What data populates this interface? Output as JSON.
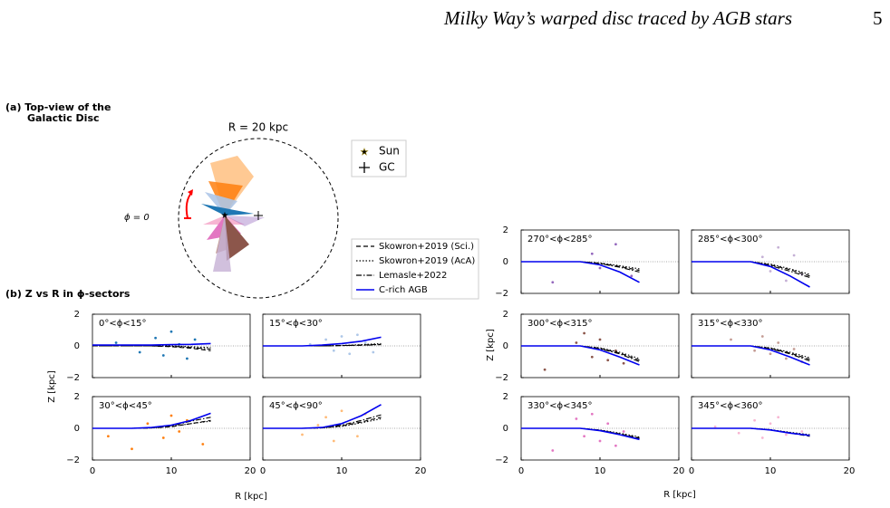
{
  "header": {
    "title": "Milky Way’s warped disc traced by AGB stars",
    "page": "5"
  },
  "panel_a": {
    "title_line1": "(a) Top-view of the",
    "title_line2": "Galactic Disc",
    "circle_label": "R = 20 kpc",
    "phi_label": "ϕ = 0",
    "legend": [
      "Sun",
      "GC"
    ]
  },
  "panel_b_title": "(b) Z vs R in ϕ-sectors",
  "legend": [
    {
      "name": "Skowron+2019 (Sci.)",
      "style": "dashed",
      "color": "#000000"
    },
    {
      "name": "Skowron+2019 (AcA)",
      "style": "dotted",
      "color": "#000000"
    },
    {
      "name": "Lemasle+2022",
      "style": "dashdot",
      "color": "#000000"
    },
    {
      "name": "C-rich AGB",
      "style": "solid",
      "color": "#0000ee"
    }
  ],
  "xlabel": "R [kpc]",
  "ylabel": "Z [kpc]",
  "xlim": [
    0,
    20
  ],
  "ylim": [
    -2,
    2
  ],
  "xticks": [
    0,
    10,
    20
  ],
  "yticks": [
    {
      "value": -2,
      "label": "−2"
    },
    0,
    2
  ],
  "model_x": [
    0,
    5,
    7.5,
    10,
    12.5,
    15
  ],
  "sectors": [
    {
      "label": "0°<ϕ<15°",
      "color": "#1f77b4",
      "agb": [
        0.05,
        0.05,
        0.05,
        0.08,
        0.1,
        0.15
      ],
      "sci": [
        0,
        0,
        0,
        -0.05,
        -0.15,
        -0.3
      ],
      "aca": [
        0,
        0,
        0,
        0,
        -0.05,
        -0.1
      ],
      "lem": [
        0,
        0,
        0,
        -0.02,
        -0.1,
        -0.2
      ],
      "pts_x": [
        3,
        6,
        8,
        9,
        10,
        11,
        12,
        13
      ],
      "pts_y": [
        0.2,
        -0.4,
        0.5,
        -0.6,
        0.9,
        0.1,
        -0.8,
        0.4
      ]
    },
    {
      "label": "15°<ϕ<30°",
      "color": "#aec7e8",
      "agb": [
        0,
        0,
        0.05,
        0.15,
        0.3,
        0.55
      ],
      "sci": [
        0,
        0,
        0,
        0.02,
        0.05,
        0.1
      ],
      "aca": [
        0,
        0,
        0,
        0.03,
        0.08,
        0.15
      ],
      "lem": [
        0,
        0,
        0,
        0.02,
        0.04,
        0.08
      ],
      "pts_x": [
        6,
        8,
        9,
        10,
        11,
        12,
        13,
        14
      ],
      "pts_y": [
        0.1,
        0.4,
        -0.3,
        0.6,
        -0.5,
        0.7,
        0.2,
        -0.4
      ]
    },
    {
      "label": "30°<ϕ<45°",
      "color": "#ff7f0e",
      "agb": [
        0,
        0,
        0.05,
        0.2,
        0.5,
        0.95
      ],
      "sci": [
        0,
        0,
        0.02,
        0.1,
        0.3,
        0.5
      ],
      "aca": [
        0,
        0,
        0.02,
        0.12,
        0.3,
        0.45
      ],
      "lem": [
        0,
        0,
        0.03,
        0.15,
        0.45,
        0.7
      ],
      "pts_x": [
        2,
        5,
        7,
        9,
        10,
        11,
        12,
        14
      ],
      "pts_y": [
        -0.5,
        -1.3,
        0.3,
        -0.6,
        0.8,
        -0.2,
        0.5,
        -1.0
      ]
    },
    {
      "label": "45°<ϕ<90°",
      "color": "#ffbb78",
      "agb": [
        0,
        0,
        0.05,
        0.3,
        0.8,
        1.5
      ],
      "sci": [
        0,
        0,
        0.03,
        0.15,
        0.4,
        0.7
      ],
      "aca": [
        0,
        0,
        0.02,
        0.12,
        0.35,
        0.6
      ],
      "lem": [
        0,
        0,
        0.04,
        0.2,
        0.5,
        0.85
      ],
      "pts_x": [
        5,
        7,
        8,
        9,
        10,
        11,
        12,
        13
      ],
      "pts_y": [
        -0.4,
        0.2,
        0.7,
        -0.8,
        1.1,
        0.3,
        -0.5,
        0.9
      ]
    },
    {
      "label": "270°<ϕ<285°",
      "color": "#9467bd",
      "agb": [
        0,
        0,
        0,
        -0.2,
        -0.65,
        -1.3
      ],
      "sci": [
        0,
        0,
        0,
        -0.1,
        -0.3,
        -0.55
      ],
      "aca": [
        0,
        0,
        0,
        -0.08,
        -0.25,
        -0.45
      ],
      "lem": [
        0,
        0,
        0,
        -0.12,
        -0.35,
        -0.65
      ],
      "pts_x": [
        4,
        9,
        10,
        12,
        14
      ],
      "pts_y": [
        -1.3,
        0.5,
        -0.4,
        1.1,
        -0.9
      ]
    },
    {
      "label": "285°<ϕ<300°",
      "color": "#c5b0d5",
      "agb": [
        0,
        0,
        0,
        -0.3,
        -0.9,
        -1.6
      ],
      "sci": [
        0,
        0,
        0,
        -0.2,
        -0.5,
        -0.9
      ],
      "aca": [
        0,
        0,
        0,
        -0.15,
        -0.45,
        -0.8
      ],
      "lem": [
        0,
        0,
        0,
        -0.25,
        -0.6,
        -1.0
      ],
      "pts_x": [
        9,
        10,
        11,
        12,
        13,
        14
      ],
      "pts_y": [
        0.3,
        -0.6,
        0.9,
        -1.2,
        0.4,
        -0.8
      ]
    },
    {
      "label": "300°<ϕ<315°",
      "color": "#8c564b",
      "agb": [
        0,
        0,
        0,
        -0.25,
        -0.7,
        -1.2
      ],
      "sci": [
        0,
        0,
        0,
        -0.15,
        -0.45,
        -0.9
      ],
      "aca": [
        0,
        0,
        0,
        -0.12,
        -0.4,
        -0.8
      ],
      "lem": [
        0,
        0,
        0,
        -0.18,
        -0.5,
        -1.0
      ],
      "pts_x": [
        3,
        7,
        8,
        9,
        10,
        11,
        12,
        13
      ],
      "pts_y": [
        -1.5,
        0.2,
        0.8,
        -0.7,
        0.4,
        -0.9,
        -0.3,
        -1.1
      ]
    },
    {
      "label": "315°<ϕ<330°",
      "color": "#c49c94",
      "agb": [
        0,
        0,
        0,
        -0.25,
        -0.7,
        -1.2
      ],
      "sci": [
        0,
        0,
        0,
        -0.15,
        -0.45,
        -0.85
      ],
      "aca": [
        0,
        0,
        0,
        -0.12,
        -0.4,
        -0.75
      ],
      "lem": [
        0,
        0,
        0,
        -0.18,
        -0.5,
        -0.95
      ],
      "pts_x": [
        5,
        8,
        9,
        10,
        11,
        12,
        13,
        14
      ],
      "pts_y": [
        0.4,
        -0.3,
        0.6,
        -0.5,
        0.2,
        -0.8,
        -0.2,
        -1.0
      ]
    },
    {
      "label": "330°<ϕ<345°",
      "color": "#e377c2",
      "agb": [
        0,
        0,
        0,
        -0.15,
        -0.4,
        -0.7
      ],
      "sci": [
        0,
        0,
        0,
        -0.12,
        -0.35,
        -0.6
      ],
      "aca": [
        0,
        0,
        0,
        -0.1,
        -0.3,
        -0.55
      ],
      "lem": [
        0,
        0,
        0,
        -0.12,
        -0.38,
        -0.65
      ],
      "pts_x": [
        4,
        7,
        8,
        9,
        10,
        11,
        12,
        13
      ],
      "pts_y": [
        -1.4,
        0.6,
        -0.5,
        0.9,
        -0.8,
        0.3,
        -1.1,
        -0.2
      ]
    },
    {
      "label": "345°<ϕ<360°",
      "color": "#f7b6d2",
      "agb": [
        0,
        0,
        0,
        -0.1,
        -0.3,
        -0.45
      ],
      "sci": [
        0,
        0,
        0,
        -0.1,
        -0.3,
        -0.5
      ],
      "aca": [
        0,
        0,
        0,
        -0.08,
        -0.25,
        -0.4
      ],
      "lem": [
        0,
        0,
        0,
        -0.1,
        -0.28,
        -0.45
      ],
      "pts_x": [
        3,
        6,
        8,
        9,
        10,
        11,
        12,
        14
      ],
      "pts_y": [
        0.1,
        -0.3,
        0.5,
        -0.6,
        0.3,
        0.7,
        -0.4,
        -0.2
      ]
    }
  ]
}
